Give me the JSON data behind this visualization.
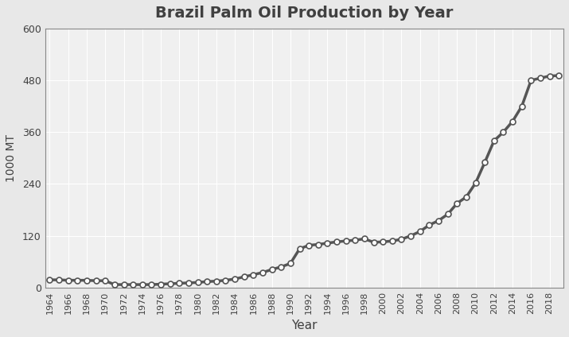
{
  "title": "Brazil Palm Oil Production by Year",
  "xlabel": "Year",
  "ylabel": "1000 MT",
  "years": [
    1964,
    1965,
    1966,
    1967,
    1968,
    1969,
    1970,
    1971,
    1972,
    1973,
    1974,
    1975,
    1976,
    1977,
    1978,
    1979,
    1980,
    1981,
    1982,
    1983,
    1984,
    1985,
    1986,
    1987,
    1988,
    1989,
    1990,
    1991,
    1992,
    1993,
    1994,
    1995,
    1996,
    1997,
    1998,
    1999,
    2000,
    2001,
    2002,
    2003,
    2004,
    2005,
    2006,
    2007,
    2008,
    2009,
    2010,
    2011,
    2012,
    2013,
    2014,
    2015,
    2016,
    2017,
    2018,
    2019
  ],
  "values": [
    18,
    18,
    17,
    17,
    17,
    16,
    16,
    7,
    7,
    7,
    7,
    7,
    8,
    9,
    10,
    11,
    12,
    14,
    15,
    17,
    20,
    25,
    30,
    35,
    42,
    48,
    56,
    90,
    98,
    100,
    103,
    106,
    108,
    110,
    113,
    105,
    106,
    108,
    112,
    120,
    130,
    145,
    155,
    170,
    195,
    210,
    242,
    290,
    340,
    360,
    385,
    420,
    480,
    485,
    490,
    491
  ],
  "ylim": [
    0,
    600
  ],
  "yticks": [
    0,
    120,
    240,
    360,
    480,
    600
  ],
  "ytick_labels": [
    "0",
    "120",
    "240",
    "360",
    "480",
    "600"
  ],
  "xtick_start": 1964,
  "xtick_step": 2,
  "xtick_end": 2019,
  "line_color": "#555555",
  "marker_color_face": "#ffffff",
  "marker_color_edge": "#555555",
  "marker_size": 5,
  "line_width": 2.5,
  "bg_color": "#e8e8e8",
  "plot_bg_color": "#f0f0f0",
  "grid_color": "#ffffff",
  "title_color": "#404040",
  "title_fontsize": 14
}
